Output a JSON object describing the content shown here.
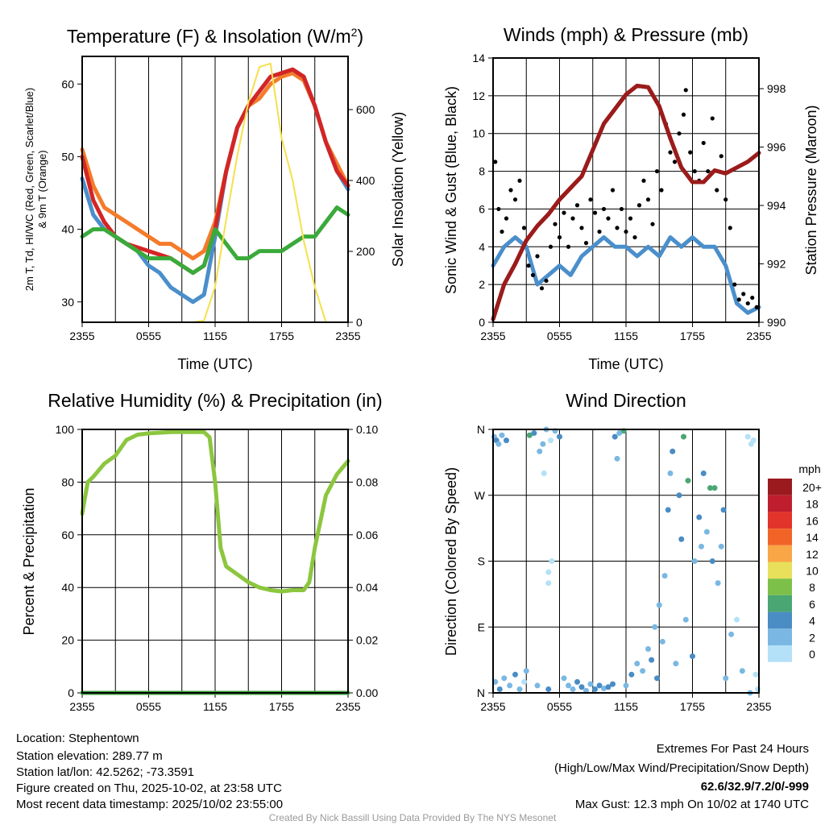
{
  "chart_data": [
    {
      "type": "line",
      "title": "Temperature (F) & Insolation (W/m2)",
      "xlabel": "Time (UTC)",
      "ylabel": "2m T, Td, HI/WC (Red, Green, Scarlet/Blue) & 9m T (Orange)",
      "ylabel_line1": "2m T, Td, HI/WC (Red, Green, Scarlet/Blue)",
      "ylabel_line2": "& 9m T (Orange)",
      "y2label": "Solar Insolation (Yellow)",
      "xticks": [
        "2355",
        "0555",
        "1155",
        "1755",
        "2355"
      ],
      "yticks": [
        30,
        40,
        50,
        60
      ],
      "y2ticks": [
        0,
        200,
        400,
        600
      ],
      "ylim": [
        27.2,
        63.8
      ],
      "y2lim": [
        0,
        750
      ],
      "x_hours": [
        0,
        1,
        2,
        3,
        4,
        5,
        6,
        7,
        8,
        9,
        10,
        11,
        12,
        13,
        14,
        15,
        16,
        17,
        18,
        19,
        20,
        21,
        22,
        23,
        24
      ],
      "series": [
        {
          "name": "9m T",
          "axis": "left",
          "color": "#f47b2a",
          "values": [
            51,
            46,
            43,
            42,
            41,
            40,
            39,
            38,
            38,
            37,
            36,
            37,
            41,
            48,
            54,
            57,
            58,
            60,
            61,
            61.5,
            60.5,
            57,
            52,
            49,
            46
          ]
        },
        {
          "name": "HI/WC",
          "axis": "left",
          "color": "#4a8fcb",
          "values": [
            47,
            42,
            40,
            39,
            38,
            37,
            35,
            34,
            32,
            31,
            30,
            31,
            39,
            48,
            54,
            57,
            59,
            61,
            61.5,
            62,
            61,
            57,
            52,
            48,
            45.5
          ]
        },
        {
          "name": "2m T",
          "axis": "left",
          "color": "#d42525",
          "values": [
            50,
            44,
            41,
            39,
            38,
            37.5,
            37,
            36.5,
            36,
            35,
            34,
            35,
            40,
            48,
            54,
            57,
            59,
            61,
            61.5,
            62,
            61,
            57,
            52,
            48,
            46
          ]
        },
        {
          "name": "Td",
          "axis": "left",
          "color": "#3aaa3a",
          "values": [
            39,
            40,
            40,
            39,
            38,
            37,
            36,
            36,
            36,
            35,
            34,
            35,
            40,
            38,
            36,
            36,
            37,
            37,
            37,
            38,
            39,
            39,
            41,
            43,
            42
          ]
        },
        {
          "name": "Solar Insolation",
          "axis": "right",
          "color": "#f5e04a",
          "values": [
            0,
            0,
            0,
            0,
            0,
            0,
            0,
            0,
            0,
            0,
            0,
            5,
            100,
            290,
            470,
            620,
            720,
            730,
            520,
            400,
            230,
            100,
            0,
            0,
            0
          ]
        }
      ]
    },
    {
      "type": "line",
      "title": "Winds (mph) & Pressure (mb)",
      "xlabel": "Time (UTC)",
      "ylabel": "Sonic Wind & Gust (Blue, Black)",
      "y2label": "Station Pressure (Maroon)",
      "xticks": [
        "2355",
        "0555",
        "1155",
        "1755",
        "2355"
      ],
      "yticks": [
        0,
        2,
        4,
        6,
        8,
        10,
        12,
        14
      ],
      "y2ticks": [
        990,
        992,
        994,
        996,
        998
      ],
      "ylim": [
        0,
        14
      ],
      "y2lim": [
        990,
        999.05
      ],
      "x_hours": [
        0,
        1,
        2,
        3,
        4,
        5,
        6,
        7,
        8,
        9,
        10,
        11,
        12,
        13,
        14,
        15,
        16,
        17,
        18,
        19,
        20,
        21,
        22,
        23,
        24
      ],
      "series": [
        {
          "name": "Sonic Wind",
          "axis": "left",
          "color": "#4a8fcb",
          "values": [
            3,
            4,
            4.5,
            4,
            2,
            2.5,
            3,
            2.5,
            3.5,
            4,
            4.5,
            4,
            4,
            3.5,
            4,
            3.5,
            4.5,
            4,
            4.5,
            4,
            4,
            3,
            1,
            0.5,
            0.8
          ]
        },
        {
          "name": "Station Pressure",
          "axis": "right",
          "color": "#9b1b1b",
          "values": [
            990.1,
            991.3,
            992,
            992.8,
            993.3,
            993.7,
            994.2,
            994.6,
            995,
            995.9,
            996.8,
            997.3,
            997.8,
            998.1,
            998.05,
            997.4,
            996.3,
            995.3,
            994.8,
            994.8,
            995.2,
            995.1,
            995.3,
            995.5,
            995.8
          ]
        }
      ],
      "gusts": [
        [
          0.2,
          8.5
        ],
        [
          0.5,
          6
        ],
        [
          0.8,
          4.8
        ],
        [
          1.2,
          5.5
        ],
        [
          1.6,
          7
        ],
        [
          2,
          6.5
        ],
        [
          2.4,
          7.5
        ],
        [
          2.8,
          5
        ],
        [
          3.2,
          3
        ],
        [
          3.6,
          2.5
        ],
        [
          4,
          3.5
        ],
        [
          4.4,
          1.8
        ],
        [
          4.8,
          2.2
        ],
        [
          5.2,
          4
        ],
        [
          5.6,
          5.2
        ],
        [
          6,
          4.5
        ],
        [
          6.4,
          5.8
        ],
        [
          6.8,
          4
        ],
        [
          7.2,
          5.5
        ],
        [
          7.6,
          6.2
        ],
        [
          8,
          5
        ],
        [
          8.4,
          4.2
        ],
        [
          8.8,
          6.5
        ],
        [
          9.2,
          5.8
        ],
        [
          9.6,
          4.8
        ],
        [
          10,
          6
        ],
        [
          10.4,
          5.5
        ],
        [
          10.8,
          7
        ],
        [
          11.2,
          5
        ],
        [
          11.6,
          6
        ],
        [
          12,
          4.8
        ],
        [
          12.4,
          5.5
        ],
        [
          12.8,
          4.5
        ],
        [
          13.2,
          6.2
        ],
        [
          13.6,
          7.5
        ],
        [
          14,
          6.5
        ],
        [
          14.4,
          5.2
        ],
        [
          14.8,
          8
        ],
        [
          15.2,
          7
        ],
        [
          15.6,
          10.5
        ],
        [
          16,
          9
        ],
        [
          16.4,
          8.5
        ],
        [
          16.8,
          10
        ],
        [
          17.2,
          11
        ],
        [
          17.4,
          12.3
        ],
        [
          17.8,
          9
        ],
        [
          18.2,
          8
        ],
        [
          18.6,
          7.5
        ],
        [
          19,
          9.5
        ],
        [
          19.4,
          8
        ],
        [
          19.8,
          10.8
        ],
        [
          20.2,
          7
        ],
        [
          20.6,
          8.8
        ],
        [
          21,
          6.5
        ],
        [
          21.4,
          5
        ],
        [
          21.8,
          2
        ],
        [
          22.2,
          1.2
        ],
        [
          22.6,
          1.5
        ],
        [
          23,
          1
        ],
        [
          23.4,
          1.3
        ],
        [
          23.8,
          0.8
        ]
      ],
      "gust_color": "#000000"
    },
    {
      "type": "line",
      "title": "Relative Humidity (%) & Precipitation (in)",
      "ylabel": "Percent & Precipitation",
      "xticks": [
        "2355",
        "0555",
        "1155",
        "1755",
        "2355"
      ],
      "yticks": [
        0,
        20,
        40,
        60,
        80,
        100
      ],
      "y2ticks": [
        "0.00",
        "0.02",
        "0.04",
        "0.06",
        "0.08",
        "0.10"
      ],
      "ylim": [
        0,
        100
      ],
      "y2lim": [
        0,
        0.1
      ],
      "x_hours": [
        0,
        0.5,
        1,
        2,
        3,
        4,
        5,
        6,
        8,
        10,
        11,
        11.5,
        12,
        12.5,
        13,
        14,
        15,
        16,
        17,
        18,
        19,
        20,
        20.5,
        21,
        22,
        23,
        24
      ],
      "series": [
        {
          "name": "Relative Humidity",
          "axis": "left",
          "color": "#8cc63f",
          "values": [
            68,
            80,
            82,
            87,
            90,
            96,
            98,
            98.5,
            99,
            99,
            99,
            97,
            80,
            55,
            48,
            45,
            42,
            40,
            39,
            38.5,
            39,
            39,
            42,
            55,
            75,
            83,
            88
          ]
        },
        {
          "name": "Precipitation",
          "axis": "right",
          "color": "#3a9a3a",
          "values": [
            0,
            0,
            0,
            0,
            0,
            0,
            0,
            0,
            0,
            0,
            0,
            0,
            0,
            0,
            0,
            0,
            0,
            0,
            0,
            0,
            0,
            0,
            0,
            0,
            0,
            0,
            0
          ]
        }
      ]
    },
    {
      "type": "scatter",
      "title": "Wind Direction",
      "ylabel": "Direction (Colored By Speed)",
      "xticks": [
        "2355",
        "0555",
        "1155",
        "1755",
        "2355"
      ],
      "yticks": [
        "N",
        "E",
        "S",
        "W",
        "N"
      ],
      "ylim": [
        0,
        360
      ],
      "legend": {
        "title": "mph",
        "position": "right",
        "labels": [
          "20+",
          "18",
          "16",
          "14",
          "12",
          "10",
          "8",
          "6",
          "4",
          "2",
          "0"
        ],
        "colors": [
          "#9a1a1e",
          "#be1e2d",
          "#e2342a",
          "#f26328",
          "#f9a647",
          "#e8e05a",
          "#7cc04a",
          "#4aa673",
          "#4a8cc4",
          "#7ab8e3",
          "#b4e1f8"
        ]
      },
      "points": [
        [
          0.1,
          350,
          3
        ],
        [
          0.3,
          345,
          4
        ],
        [
          0.5,
          340,
          2
        ],
        [
          0.8,
          352,
          3
        ],
        [
          1.2,
          345,
          4
        ],
        [
          0.2,
          15,
          3
        ],
        [
          0.6,
          5,
          4
        ],
        [
          1,
          20,
          3
        ],
        [
          1.5,
          10,
          2
        ],
        [
          2,
          25,
          4
        ],
        [
          2.4,
          5,
          3
        ],
        [
          2.8,
          15,
          1
        ],
        [
          3,
          30,
          2
        ],
        [
          3.3,
          352,
          7
        ],
        [
          3.7,
          355,
          4
        ],
        [
          4,
          10,
          3
        ],
        [
          4.2,
          330,
          3
        ],
        [
          4.5,
          340,
          2
        ],
        [
          4.8,
          360,
          3
        ],
        [
          5,
          5,
          4
        ],
        [
          5.2,
          345,
          1
        ],
        [
          5.6,
          358,
          2
        ],
        [
          6,
          350,
          4
        ],
        [
          5,
          150,
          1
        ],
        [
          5,
          165,
          0
        ],
        [
          5.3,
          180,
          1
        ],
        [
          4.6,
          300,
          0
        ],
        [
          6.4,
          20,
          3
        ],
        [
          6.8,
          10,
          2
        ],
        [
          7.2,
          5,
          3
        ],
        [
          7.6,
          15,
          4
        ],
        [
          8,
          8,
          4
        ],
        [
          8.4,
          3,
          3
        ],
        [
          8.8,
          12,
          2
        ],
        [
          9.2,
          5,
          4
        ],
        [
          9.6,
          10,
          4
        ],
        [
          10,
          6,
          3
        ],
        [
          10.4,
          8,
          4
        ],
        [
          10.8,
          12,
          5
        ],
        [
          11,
          350,
          4
        ],
        [
          11.4,
          355,
          3
        ],
        [
          11.8,
          358,
          6
        ],
        [
          11.2,
          320,
          2
        ],
        [
          12,
          10,
          3
        ],
        [
          12.5,
          25,
          4
        ],
        [
          13,
          40,
          3
        ],
        [
          13.5,
          30,
          2
        ],
        [
          14,
          60,
          3
        ],
        [
          14.3,
          45,
          4
        ],
        [
          14.6,
          90,
          3
        ],
        [
          14.8,
          20,
          4
        ],
        [
          15,
          120,
          2
        ],
        [
          15.3,
          70,
          3
        ],
        [
          15.5,
          160,
          2
        ],
        [
          15.8,
          250,
          4
        ],
        [
          16,
          300,
          3
        ],
        [
          16.2,
          330,
          4
        ],
        [
          16.5,
          40,
          3
        ],
        [
          16.8,
          270,
          5
        ],
        [
          17,
          210,
          4
        ],
        [
          17.2,
          350,
          6
        ],
        [
          17.4,
          100,
          3
        ],
        [
          17.6,
          290,
          6
        ],
        [
          18,
          50,
          4
        ],
        [
          18.2,
          180,
          3
        ],
        [
          18.6,
          240,
          4
        ],
        [
          18.8,
          200,
          2
        ],
        [
          19,
          300,
          5
        ],
        [
          19.3,
          220,
          3
        ],
        [
          19.6,
          280,
          6
        ],
        [
          19.8,
          180,
          4
        ],
        [
          20,
          280,
          6
        ],
        [
          20.3,
          150,
          3
        ],
        [
          20.6,
          200,
          3
        ],
        [
          20.8,
          250,
          4
        ],
        [
          21,
          20,
          3
        ],
        [
          21.5,
          80,
          2
        ],
        [
          22,
          100,
          1
        ],
        [
          22.5,
          30,
          2
        ],
        [
          23,
          350,
          0
        ],
        [
          23.3,
          340,
          1
        ],
        [
          23.5,
          345,
          0
        ],
        [
          23.7,
          25,
          1
        ],
        [
          23.9,
          5,
          0
        ],
        [
          23.2,
          0,
          2
        ]
      ]
    }
  ],
  "info": {
    "location": "Location: Stephentown",
    "elevation": "Station elevation: 289.77 m",
    "latlon": "Station lat/lon: 42.5262; -73.3591",
    "created": "Figure created on Thu, 2025-10-02, at 23:58 UTC",
    "recent": "Most recent data timestamp: 2025/10/02 23:55:00"
  },
  "extremes": {
    "title": "Extremes For Past 24 Hours",
    "subtitle": "(High/Low/Max Wind/Precipitation/Snow Depth)",
    "values": "62.6/32.9/7.2/0/-999",
    "values_color": "#c8202a",
    "max_gust": "Max Gust: 12.3 mph On 10/02 at 1740 UTC"
  },
  "credit": "Created By Nick Bassill Using Data Provided By The NYS Mesonet"
}
